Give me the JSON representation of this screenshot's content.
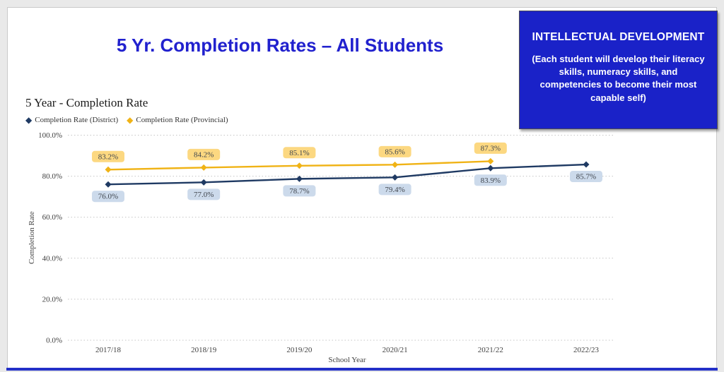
{
  "slide": {
    "title": "5 Yr. Completion Rates – All Students"
  },
  "callout": {
    "heading": "INTELLECTUAL DEVELOPMENT",
    "body": "(Each student will develop their literacy skills, numeracy skills, and competencies to become their most capable self)"
  },
  "colors": {
    "title_blue": "#2121ce",
    "callout_bg": "#1a22c8",
    "bottom_bar": "#2330c8",
    "district_line": "#1f3a63",
    "provincial_line": "#f0b316",
    "district_label_bg": "#ccdaeb",
    "provincial_label_bg": "#fcd881"
  },
  "chart_data": {
    "type": "line",
    "title": "5 Year - Completion Rate",
    "xlabel": "School Year",
    "ylabel": "Completion Rate",
    "categories": [
      "2017/18",
      "2018/19",
      "2019/20",
      "2020/21",
      "2021/22",
      "2022/23"
    ],
    "ylim": [
      0,
      100
    ],
    "yticks": [
      {
        "value": 0,
        "label": "0.0%"
      },
      {
        "value": 20,
        "label": "20.0%"
      },
      {
        "value": 40,
        "label": "40.0%"
      },
      {
        "value": 60,
        "label": "60.0%"
      },
      {
        "value": 80,
        "label": "80.0%"
      },
      {
        "value": 100,
        "label": "100.0%"
      }
    ],
    "grid": "horizontal-dotted",
    "legend_position": "top-left",
    "series": [
      {
        "name": "Completion Rate (District)",
        "color": "#1f3a63",
        "label_bg": "#ccdaeb",
        "label_placement": "below",
        "values": [
          76.0,
          77.0,
          78.7,
          79.4,
          83.9,
          85.7
        ],
        "labels": [
          "76.0%",
          "77.0%",
          "78.7%",
          "79.4%",
          "83.9%",
          "85.7%"
        ]
      },
      {
        "name": "Completion Rate (Provincial)",
        "color": "#f0b316",
        "label_bg": "#fcd881",
        "label_placement": "above",
        "values": [
          83.2,
          84.2,
          85.1,
          85.6,
          87.3,
          null
        ],
        "labels": [
          "83.2%",
          "84.2%",
          "85.1%",
          "85.6%",
          "87.3%",
          null
        ]
      }
    ]
  }
}
